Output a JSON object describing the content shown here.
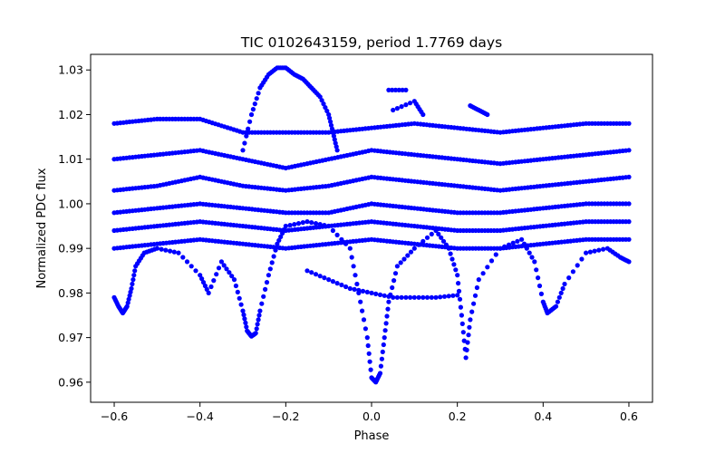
{
  "chart_data": {
    "type": "scatter",
    "title": "TIC 0102643159, period 1.7769 days",
    "xlabel": "Phase",
    "ylabel": "Normalized PDC flux",
    "xlim": [
      -0.655,
      0.655
    ],
    "ylim": [
      0.9555,
      1.0335
    ],
    "xticks": [
      -0.6,
      -0.4,
      -0.2,
      0.0,
      0.2,
      0.4,
      0.6
    ],
    "xtick_labels": [
      "−0.6",
      "−0.4",
      "−0.2",
      "0.0",
      "0.2",
      "0.4",
      "0.6"
    ],
    "yticks": [
      0.96,
      0.97,
      0.98,
      0.99,
      1.0,
      1.01,
      1.02,
      1.03
    ],
    "ytick_labels": [
      "0.96",
      "0.97",
      "0.98",
      "0.99",
      "1.00",
      "1.01",
      "1.02",
      "1.03"
    ],
    "grid": false,
    "marker_color": "#0000ff",
    "marker": "filled circle",
    "series": [
      {
        "name": "flux",
        "points": [
          [
            -0.6,
            0.979
          ],
          [
            -0.59,
            0.977
          ],
          [
            -0.58,
            0.9755
          ],
          [
            -0.57,
            0.977
          ],
          [
            -0.56,
            0.981
          ],
          [
            -0.55,
            0.986
          ],
          [
            -0.53,
            0.989
          ],
          [
            -0.5,
            0.99
          ],
          [
            -0.45,
            0.989
          ],
          [
            -0.4,
            0.984
          ],
          [
            -0.38,
            0.98
          ],
          [
            -0.35,
            0.987
          ],
          [
            -0.32,
            0.983
          ],
          [
            -0.3,
            0.976
          ],
          [
            -0.29,
            0.9715
          ],
          [
            -0.28,
            0.9703
          ],
          [
            -0.27,
            0.971
          ],
          [
            -0.26,
            0.976
          ],
          [
            -0.24,
            0.984
          ],
          [
            -0.22,
            0.991
          ],
          [
            -0.2,
            0.995
          ],
          [
            -0.15,
            0.996
          ],
          [
            -0.1,
            0.995
          ],
          [
            -0.05,
            0.99
          ],
          [
            -0.03,
            0.98
          ],
          [
            -0.01,
            0.97
          ],
          [
            0.0,
            0.961
          ],
          [
            0.01,
            0.96
          ],
          [
            0.02,
            0.962
          ],
          [
            0.03,
            0.97
          ],
          [
            0.04,
            0.978
          ],
          [
            0.06,
            0.986
          ],
          [
            0.1,
            0.99
          ],
          [
            0.15,
            0.994
          ],
          [
            0.18,
            0.99
          ],
          [
            0.2,
            0.984
          ],
          [
            0.21,
            0.975
          ],
          [
            0.22,
            0.9655
          ],
          [
            0.23,
            0.974
          ],
          [
            0.25,
            0.983
          ],
          [
            0.3,
            0.99
          ],
          [
            0.35,
            0.992
          ],
          [
            0.38,
            0.987
          ],
          [
            0.4,
            0.978
          ],
          [
            0.41,
            0.9755
          ],
          [
            0.43,
            0.977
          ],
          [
            0.45,
            0.982
          ],
          [
            0.5,
            0.989
          ],
          [
            0.55,
            0.99
          ],
          [
            0.58,
            0.988
          ],
          [
            0.6,
            0.987
          ],
          [
            -0.3,
            1.012
          ],
          [
            -0.28,
            1.02
          ],
          [
            -0.26,
            1.026
          ],
          [
            -0.24,
            1.029
          ],
          [
            -0.22,
            1.0305
          ],
          [
            -0.2,
            1.0305
          ],
          [
            -0.18,
            1.029
          ],
          [
            -0.16,
            1.028
          ],
          [
            -0.14,
            1.026
          ],
          [
            -0.12,
            1.024
          ],
          [
            -0.1,
            1.02
          ],
          [
            -0.09,
            1.016
          ],
          [
            -0.08,
            1.012
          ],
          [
            0.04,
            1.0255
          ],
          [
            0.08,
            1.0255
          ],
          [
            0.05,
            1.021
          ],
          [
            0.1,
            1.023
          ],
          [
            0.12,
            1.02
          ],
          [
            0.23,
            1.022
          ],
          [
            0.25,
            1.021
          ],
          [
            0.27,
            1.02
          ],
          [
            -0.15,
            0.985
          ],
          [
            -0.1,
            0.983
          ],
          [
            -0.05,
            0.981
          ],
          [
            0.0,
            0.98
          ],
          [
            0.05,
            0.979
          ],
          [
            0.1,
            0.979
          ],
          [
            0.15,
            0.979
          ],
          [
            0.2,
            0.9795
          ]
        ]
      },
      {
        "name": "flux (bands)",
        "bands": [
          [
            [
              -0.6,
              1.018
            ],
            [
              -0.5,
              1.019
            ],
            [
              -0.4,
              1.019
            ],
            [
              -0.3,
              1.016
            ],
            [
              -0.2,
              1.016
            ],
            [
              -0.1,
              1.016
            ],
            [
              0.0,
              1.017
            ],
            [
              0.1,
              1.018
            ],
            [
              0.2,
              1.017
            ],
            [
              0.3,
              1.016
            ],
            [
              0.4,
              1.017
            ],
            [
              0.5,
              1.018
            ],
            [
              0.6,
              1.018
            ]
          ],
          [
            [
              -0.6,
              1.01
            ],
            [
              -0.5,
              1.011
            ],
            [
              -0.4,
              1.012
            ],
            [
              -0.3,
              1.01
            ],
            [
              -0.2,
              1.008
            ],
            [
              -0.1,
              1.01
            ],
            [
              0.0,
              1.012
            ],
            [
              0.1,
              1.011
            ],
            [
              0.2,
              1.01
            ],
            [
              0.3,
              1.009
            ],
            [
              0.4,
              1.01
            ],
            [
              0.5,
              1.011
            ],
            [
              0.6,
              1.012
            ]
          ],
          [
            [
              -0.6,
              1.003
            ],
            [
              -0.5,
              1.004
            ],
            [
              -0.4,
              1.006
            ],
            [
              -0.3,
              1.004
            ],
            [
              -0.2,
              1.003
            ],
            [
              -0.1,
              1.004
            ],
            [
              0.0,
              1.006
            ],
            [
              0.1,
              1.005
            ],
            [
              0.2,
              1.004
            ],
            [
              0.3,
              1.003
            ],
            [
              0.4,
              1.004
            ],
            [
              0.5,
              1.005
            ],
            [
              0.6,
              1.006
            ]
          ],
          [
            [
              -0.6,
              0.998
            ],
            [
              -0.5,
              0.999
            ],
            [
              -0.4,
              1.0
            ],
            [
              -0.3,
              0.999
            ],
            [
              -0.2,
              0.998
            ],
            [
              -0.1,
              0.998
            ],
            [
              0.0,
              1.0
            ],
            [
              0.1,
              0.999
            ],
            [
              0.2,
              0.998
            ],
            [
              0.3,
              0.998
            ],
            [
              0.4,
              0.999
            ],
            [
              0.5,
              1.0
            ],
            [
              0.6,
              1.0
            ]
          ],
          [
            [
              -0.6,
              0.994
            ],
            [
              -0.5,
              0.995
            ],
            [
              -0.4,
              0.996
            ],
            [
              -0.3,
              0.995
            ],
            [
              -0.2,
              0.994
            ],
            [
              -0.1,
              0.995
            ],
            [
              0.0,
              0.996
            ],
            [
              0.1,
              0.995
            ],
            [
              0.2,
              0.994
            ],
            [
              0.3,
              0.994
            ],
            [
              0.4,
              0.995
            ],
            [
              0.5,
              0.996
            ],
            [
              0.6,
              0.996
            ]
          ],
          [
            [
              -0.6,
              0.99
            ],
            [
              -0.5,
              0.991
            ],
            [
              -0.4,
              0.992
            ],
            [
              -0.3,
              0.991
            ],
            [
              -0.2,
              0.99
            ],
            [
              -0.1,
              0.991
            ],
            [
              0.0,
              0.992
            ],
            [
              0.1,
              0.991
            ],
            [
              0.2,
              0.99
            ],
            [
              0.3,
              0.99
            ],
            [
              0.4,
              0.991
            ],
            [
              0.5,
              0.992
            ],
            [
              0.6,
              0.992
            ]
          ]
        ]
      }
    ]
  }
}
